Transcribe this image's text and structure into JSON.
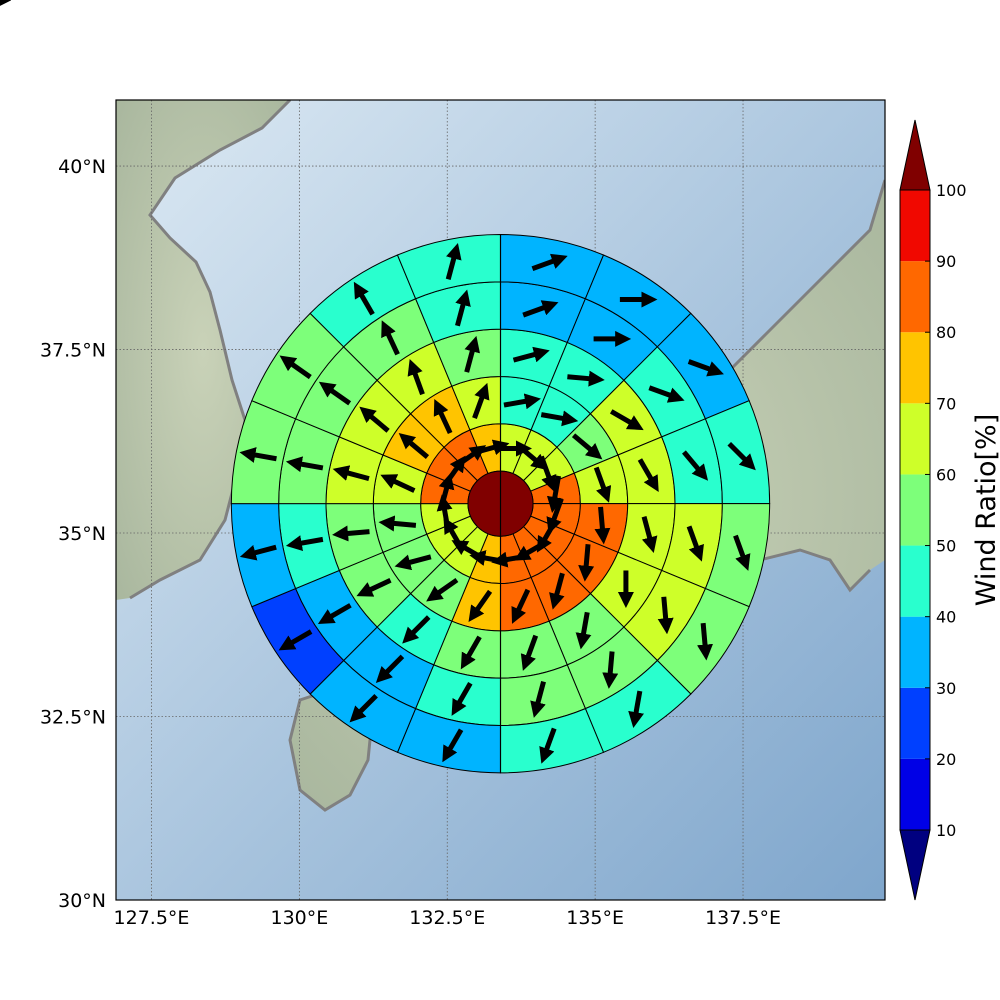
{
  "map": {
    "lat_ticks": [
      "30°N",
      "32.5°N",
      "35°N",
      "37.5°N",
      "40°N"
    ],
    "lon_ticks": [
      "127.5°E",
      "130°E",
      "132.5°E",
      "135°E",
      "137.5°E"
    ],
    "extent": {
      "lon": [
        126.9,
        139.9
      ],
      "lat": [
        30.0,
        40.9
      ]
    },
    "grid": true,
    "coastline_color": "#808080",
    "background": "shaded-relief"
  },
  "colorbar": {
    "title": "Wind Ratio[%]",
    "tick_labels": [
      "10",
      "20",
      "30",
      "40",
      "50",
      "60",
      "70",
      "80",
      "90",
      "100"
    ],
    "extend": "both",
    "colors": [
      "#000080",
      "#0000e6",
      "#0040ff",
      "#00b4ff",
      "#29ffce",
      "#7dff7a",
      "#ceff29",
      "#ffc400",
      "#ff6800",
      "#f10800",
      "#800000"
    ]
  },
  "chart_data": {
    "type": "heatmap",
    "center": {
      "lon": 133.4,
      "lat": 35.4
    },
    "ring_edges_deg": [
      0.55,
      1.35,
      2.15,
      2.95,
      3.75,
      4.55
    ],
    "sectors": 16,
    "core_value": 100,
    "rings": [
      {
        "ring": 1,
        "values": [
          68,
          63,
          63,
          82,
          82,
          82,
          82,
          82,
          75,
          62,
          62,
          62,
          82,
          82,
          82,
          72
        ],
        "wind_dir_deg": [
          90,
          130,
          160,
          190,
          200,
          210,
          240,
          260,
          280,
          300,
          330,
          350,
          15,
          35,
          55,
          75
        ]
      },
      {
        "ring": 2,
        "values": [
          48,
          45,
          58,
          68,
          82,
          82,
          82,
          82,
          75,
          57,
          57,
          57,
          65,
          75,
          75,
          65
        ],
        "wind_dir_deg": [
          80,
          100,
          130,
          160,
          175,
          185,
          195,
          205,
          215,
          235,
          255,
          275,
          295,
          310,
          335,
          20
        ]
      },
      {
        "ring": 3,
        "values": [
          45,
          45,
          65,
          65,
          65,
          68,
          58,
          55,
          52,
          45,
          52,
          58,
          65,
          65,
          65,
          58
        ],
        "wind_dir_deg": [
          75,
          95,
          120,
          150,
          165,
          180,
          190,
          200,
          210,
          225,
          245,
          265,
          285,
          310,
          340,
          15
        ]
      },
      {
        "ring": 4,
        "values": [
          35,
          35,
          45,
          45,
          60,
          60,
          55,
          55,
          45,
          35,
          35,
          45,
          58,
          58,
          58,
          48
        ],
        "wind_dir_deg": [
          70,
          90,
          110,
          140,
          160,
          175,
          185,
          195,
          210,
          225,
          240,
          260,
          280,
          305,
          335,
          15
        ]
      },
      {
        "ring": 5,
        "values": [
          35,
          35,
          35,
          45,
          58,
          58,
          45,
          45,
          35,
          35,
          25,
          35,
          52,
          58,
          45,
          45
        ],
        "wind_dir_deg": [
          70,
          90,
          110,
          135,
          160,
          175,
          190,
          200,
          210,
          225,
          240,
          255,
          280,
          305,
          330,
          15
        ]
      },
      {
        "ring": 6,
        "values": [
          35,
          35,
          35,
          58,
          58,
          48,
          45,
          45,
          35,
          25,
          25,
          25,
          45,
          52,
          52,
          45
        ],
        "wind_dir_deg": [
          65,
          85,
          105,
          130,
          155,
          175,
          190,
          200,
          210,
          220,
          240,
          255,
          280,
          305,
          330,
          20
        ]
      }
    ]
  }
}
